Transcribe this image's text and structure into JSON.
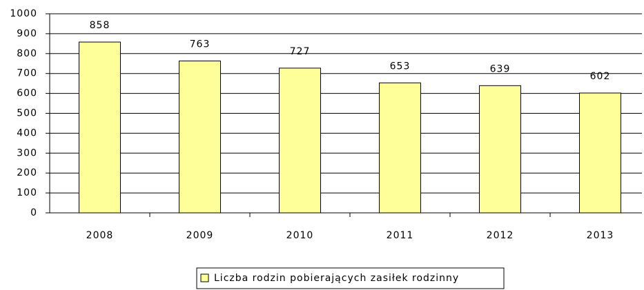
{
  "chart_data": {
    "type": "bar",
    "categories": [
      "2008",
      "2009",
      "2010",
      "2011",
      "2012",
      "2013"
    ],
    "series": [
      {
        "name": "Liczba rodzin pobierających zasiłek rodzinny",
        "color": "#ffff99",
        "values": [
          858,
          763,
          727,
          653,
          639,
          602
        ]
      }
    ],
    "ylim": [
      0,
      1000
    ],
    "yticks": [
      0,
      100,
      200,
      300,
      400,
      500,
      600,
      700,
      800,
      900,
      1000
    ],
    "grid": true,
    "legend": "bottom"
  }
}
